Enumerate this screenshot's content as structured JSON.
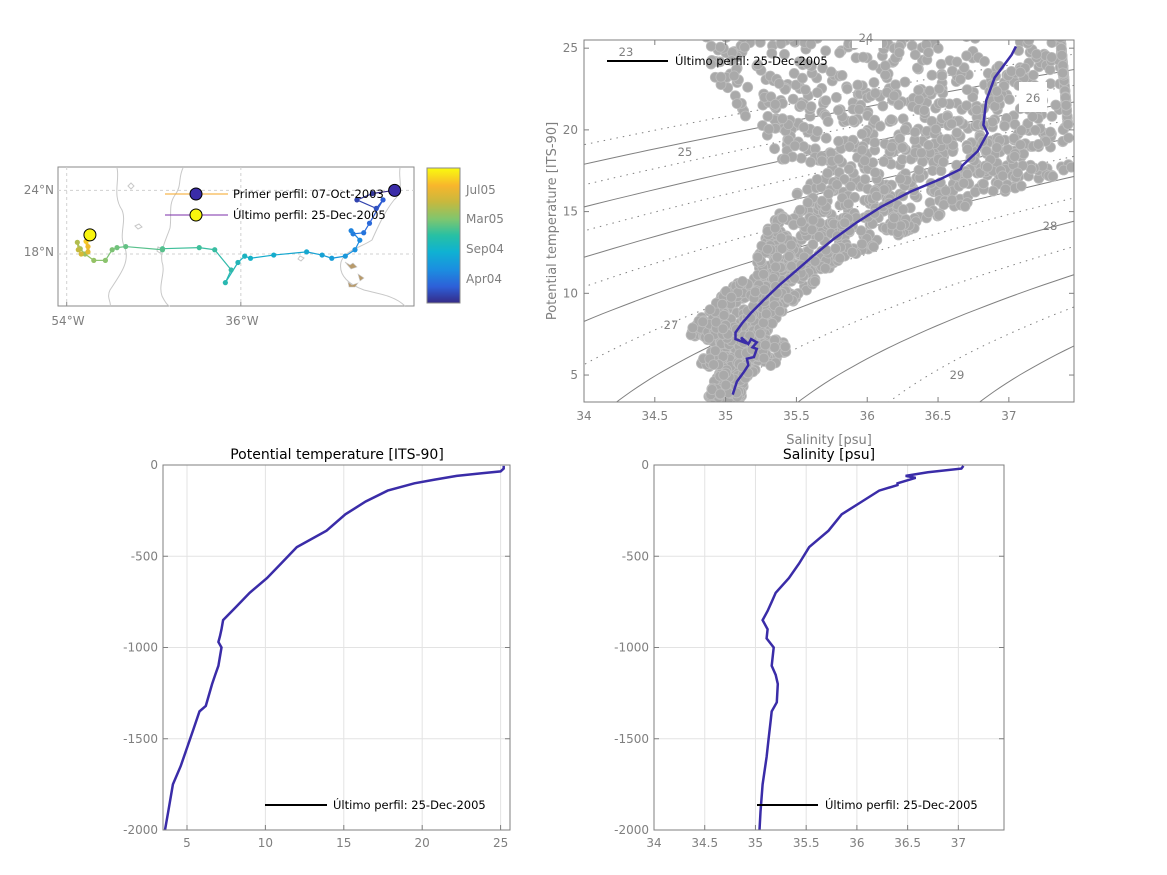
{
  "colors": {
    "profile_line": "#3a2ca8",
    "scatter": "#a9a9a9",
    "axis": "#7f7f7f",
    "grid": "#e3e3e3",
    "contour": "#808080"
  },
  "chart_data": [
    {
      "type": "scatter",
      "name": "trajectory-map",
      "xlabel": "",
      "ylabel": "",
      "x_ticks": [
        "54°W",
        "36°W"
      ],
      "y_ticks": [
        "24°N",
        "18°N"
      ],
      "x_tick_values": [
        -54,
        -36
      ],
      "y_tick_values": [
        24,
        18
      ],
      "xlim": [
        -54.9,
        -18.1
      ],
      "ylim": [
        13.1,
        26.2
      ],
      "grid": true,
      "colorbar": {
        "ticks": [
          "Jul05",
          "Mar05",
          "Sep04",
          "Apr04"
        ],
        "colors": [
          "#352a87",
          "#2d5fd8",
          "#1b8fe0",
          "#13b0c9",
          "#3fbf9b",
          "#8dc36b",
          "#c9b83b",
          "#f5bd2c",
          "#f9fb0e"
        ]
      },
      "legend": [
        {
          "label": "Primer perfil: 07-Oct-2003",
          "line_color": "#f5a623",
          "marker_color": "#3a2ca8"
        },
        {
          "label": "Último perfil: 25-Dec-2005",
          "line_color": "#7b2ea8",
          "marker_color": "#f9f50e"
        }
      ],
      "track": {
        "lon": [
          -20.1,
          -22.4,
          -24.0,
          -22.0,
          -21.3,
          -22.7,
          -23.3,
          -24.4,
          -24.6,
          -23.7,
          -24.2,
          -25.2,
          -26.6,
          -27.6,
          -29.2,
          -32.6,
          -35.0,
          -35.6,
          -36.3,
          -37.6,
          -37.0,
          -38.7,
          -40.3,
          -44.1,
          -44.1,
          -47.9,
          -48.8,
          -49.3,
          -50.0,
          -51.2,
          -52.1,
          -52.6,
          -52.9,
          -52.8,
          -52.5,
          -51.8,
          -51.8,
          -52.0,
          -51.7,
          -51.6
        ],
        "lat": [
          24.0,
          23.7,
          23.1,
          22.3,
          23.1,
          20.9,
          20.0,
          19.9,
          20.2,
          19.3,
          18.4,
          17.8,
          17.6,
          17.9,
          18.2,
          17.9,
          17.6,
          17.8,
          17.2,
          15.3,
          16.5,
          18.4,
          18.6,
          18.5,
          18.4,
          18.7,
          18.6,
          18.4,
          17.4,
          17.4,
          18.0,
          18.5,
          19.1,
          18.4,
          18.0,
          18.2,
          18.7,
          19.2,
          19.4,
          19.8
        ],
        "time_fraction": [
          0.0,
          0.03,
          0.06,
          0.09,
          0.12,
          0.15,
          0.18,
          0.2,
          0.22,
          0.24,
          0.26,
          0.28,
          0.3,
          0.32,
          0.34,
          0.36,
          0.38,
          0.4,
          0.42,
          0.44,
          0.46,
          0.48,
          0.5,
          0.52,
          0.54,
          0.56,
          0.58,
          0.6,
          0.62,
          0.64,
          0.66,
          0.68,
          0.7,
          0.74,
          0.78,
          0.82,
          0.86,
          0.9,
          0.95,
          1.0
        ]
      }
    },
    {
      "type": "scatter",
      "name": "ts-diagram",
      "xlabel": "Salinity [psu]",
      "ylabel": "Potential temperature [ITS-90]",
      "xlim": [
        34,
        37.46
      ],
      "ylim": [
        3.35,
        25.5
      ],
      "x_ticks": [
        "34",
        "34.5",
        "35",
        "35.5",
        "36",
        "36.5",
        "37"
      ],
      "x_tick_values": [
        34,
        34.5,
        35,
        35.5,
        36,
        36.5,
        37
      ],
      "y_ticks": [
        "5",
        "10",
        "15",
        "20",
        "25"
      ],
      "y_tick_values": [
        5,
        10,
        15,
        20,
        25
      ],
      "contour_labels": [
        "23",
        "24",
        "25",
        "26",
        "27",
        "28",
        "29"
      ],
      "legend": [
        {
          "label": "Último perfil: 25-Dec-2005"
        }
      ],
      "last_profile": {
        "salinity": [
          35.05,
          35.08,
          35.13,
          35.16,
          35.15,
          35.2,
          35.22,
          35.19,
          35.22,
          35.18,
          35.16,
          35.11,
          35.13,
          35.07,
          35.07,
          35.12,
          35.18,
          35.27,
          35.38,
          35.5,
          35.62,
          35.76,
          35.92,
          36.1,
          36.3,
          36.52,
          36.66,
          36.67,
          36.78,
          36.85,
          36.82,
          36.84,
          36.9,
          37.02,
          37.05
        ],
        "theta": [
          3.8,
          4.6,
          5.2,
          5.6,
          6.0,
          6.1,
          6.6,
          6.7,
          7.0,
          7.2,
          6.9,
          7.3,
          7.0,
          7.2,
          7.6,
          8.2,
          8.8,
          9.6,
          10.5,
          11.4,
          12.3,
          13.3,
          14.3,
          15.3,
          16.2,
          17.0,
          17.6,
          17.8,
          18.7,
          19.8,
          20.3,
          21.8,
          23.2,
          24.6,
          25.1
        ]
      }
    },
    {
      "type": "line",
      "name": "temperature-profile",
      "title": "Potential temperature [ITS-90]",
      "xlim": [
        3.47,
        25.6
      ],
      "ylim": [
        -2000,
        0
      ],
      "x_ticks": [
        "5",
        "10",
        "15",
        "20",
        "25"
      ],
      "x_tick_values": [
        5,
        10,
        15,
        20,
        25
      ],
      "y_ticks": [
        "0",
        "-500",
        "-1000",
        "-1500",
        "-2000"
      ],
      "y_tick_values": [
        0,
        -500,
        -1000,
        -1500,
        -2000
      ],
      "grid": true,
      "legend": [
        {
          "label": "Último perfil: 25-Dec-2005"
        }
      ],
      "series": [
        {
          "name": "Último perfil: 25-Dec-2005",
          "depth": [
            -2000,
            -1900,
            -1750,
            -1650,
            -1550,
            -1450,
            -1350,
            -1320,
            -1200,
            -1150,
            -1100,
            -1000,
            -970,
            -940,
            -900,
            -850,
            -780,
            -700,
            -620,
            -540,
            -450,
            -360,
            -270,
            -200,
            -140,
            -100,
            -80,
            -60,
            -45,
            -35,
            -20,
            -5
          ],
          "temperature": [
            3.6,
            3.8,
            4.1,
            4.6,
            5.0,
            5.4,
            5.8,
            6.2,
            6.6,
            6.8,
            7.0,
            7.2,
            7.0,
            7.1,
            7.2,
            7.3,
            8.1,
            9.0,
            10.1,
            11.0,
            12.0,
            13.9,
            15.1,
            16.4,
            17.8,
            19.5,
            20.8,
            22.2,
            23.8,
            25.0,
            25.2,
            25.2
          ]
        }
      ]
    },
    {
      "type": "line",
      "name": "salinity-profile",
      "title": "Salinity [psu]",
      "xlim": [
        34,
        37.45
      ],
      "ylim": [
        -2000,
        0
      ],
      "x_ticks": [
        "34",
        "34.5",
        "35",
        "35.5",
        "36",
        "36.5",
        "37"
      ],
      "x_tick_values": [
        34,
        34.5,
        35,
        35.5,
        36,
        36.5,
        37
      ],
      "y_ticks": [
        "0",
        "-500",
        "-1000",
        "-1500",
        "-2000"
      ],
      "y_tick_values": [
        0,
        -500,
        -1000,
        -1500,
        -2000
      ],
      "grid": true,
      "legend": [
        {
          "label": "Último perfil: 25-Dec-2005"
        }
      ],
      "series": [
        {
          "name": "Último perfil: 25-Dec-2005",
          "depth": [
            -2000,
            -1900,
            -1750,
            -1600,
            -1500,
            -1400,
            -1350,
            -1300,
            -1200,
            -1150,
            -1100,
            -1000,
            -950,
            -900,
            -850,
            -800,
            -750,
            -700,
            -620,
            -540,
            -450,
            -360,
            -270,
            -200,
            -140,
            -110,
            -100,
            -70,
            -60,
            -40,
            -20,
            -5
          ],
          "salinity": [
            35.04,
            35.05,
            35.07,
            35.11,
            35.13,
            35.15,
            35.16,
            35.21,
            35.22,
            35.2,
            35.16,
            35.18,
            35.11,
            35.12,
            35.07,
            35.12,
            35.16,
            35.2,
            35.33,
            35.43,
            35.53,
            35.72,
            35.85,
            36.05,
            36.22,
            36.4,
            36.4,
            36.58,
            36.48,
            36.7,
            37.03,
            37.05
          ]
        }
      ]
    }
  ]
}
